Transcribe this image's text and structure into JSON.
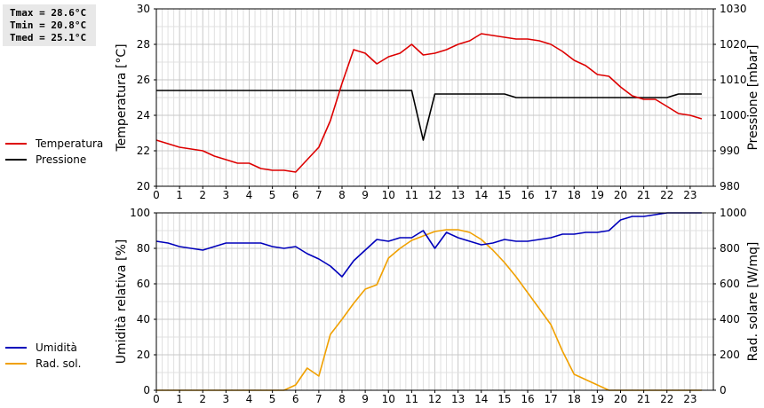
{
  "stats": {
    "tmax": "Tmax = 28.6°C",
    "tmin": "Tmin = 20.8°C",
    "tmed": "Tmed = 25.1°C"
  },
  "legend_top": [
    {
      "label": "Temperatura",
      "color": "#dd0000"
    },
    {
      "label": "Pressione",
      "color": "#000000"
    }
  ],
  "legend_bottom": [
    {
      "label": "Umidità",
      "color": "#0000bb"
    },
    {
      "label": "Rad. sol.",
      "color": "#f0a000"
    }
  ],
  "chart_data": [
    {
      "type": "line",
      "xlim": [
        0,
        24
      ],
      "xticks": [
        "0",
        "1",
        "2",
        "3",
        "4",
        "5",
        "6",
        "7",
        "8",
        "9",
        "10",
        "11",
        "12",
        "13",
        "14",
        "15",
        "16",
        "17",
        "18",
        "19",
        "20",
        "21",
        "22",
        "23"
      ],
      "ylabel_left": "Temperatura [°C]",
      "ylim_left": [
        20,
        30
      ],
      "yticks_left": [
        "20",
        "22",
        "24",
        "26",
        "28",
        "30"
      ],
      "ylabel_right": "Pressione [mbar]",
      "ylim_right": [
        980,
        1030
      ],
      "yticks_right": [
        "980",
        "990",
        "1000",
        "1010",
        "1020",
        "1030"
      ],
      "grid": true,
      "series": [
        {
          "name": "Temperatura",
          "axis": "left",
          "color": "#dd0000",
          "x": [
            0,
            1,
            2,
            2.5,
            3,
            3.5,
            4,
            4.5,
            5,
            5.5,
            6,
            6.5,
            7,
            7.5,
            8,
            8.5,
            9,
            9.5,
            10,
            10.5,
            11,
            11.5,
            12,
            12.5,
            13,
            13.5,
            14,
            14.5,
            15,
            15.5,
            16,
            16.5,
            17,
            17.5,
            18,
            18.5,
            19,
            19.5,
            20,
            20.5,
            21,
            21.5,
            22,
            22.5,
            23,
            23.5
          ],
          "y": [
            22.6,
            22.2,
            22.0,
            21.7,
            21.5,
            21.3,
            21.3,
            21.0,
            20.9,
            20.9,
            20.8,
            21.5,
            22.2,
            23.7,
            25.8,
            27.7,
            27.5,
            26.9,
            27.3,
            27.5,
            28.0,
            27.4,
            27.5,
            27.7,
            28.0,
            28.2,
            28.6,
            28.5,
            28.4,
            28.3,
            28.3,
            28.2,
            28.0,
            27.6,
            27.1,
            26.8,
            26.3,
            26.2,
            25.6,
            25.1,
            24.9,
            24.9,
            24.5,
            24.1,
            24.0,
            23.8
          ]
        },
        {
          "name": "Pressione",
          "axis": "right",
          "color": "#000000",
          "x": [
            0,
            11,
            11.5,
            12,
            15,
            15.5,
            21,
            22,
            22.5,
            23.5
          ],
          "y": [
            1007,
            1007,
            993,
            1006,
            1006,
            1005,
            1005,
            1005,
            1006,
            1006
          ]
        }
      ]
    },
    {
      "type": "line",
      "xlim": [
        0,
        24
      ],
      "xticks": [
        "0",
        "1",
        "2",
        "3",
        "4",
        "5",
        "6",
        "7",
        "8",
        "9",
        "10",
        "11",
        "12",
        "13",
        "14",
        "15",
        "16",
        "17",
        "18",
        "19",
        "20",
        "21",
        "22",
        "23"
      ],
      "ylabel_left": "Umidità relativa [%]",
      "ylim_left": [
        0,
        100
      ],
      "yticks_left": [
        "0",
        "20",
        "40",
        "60",
        "80",
        "100"
      ],
      "ylabel_right": "Rad. solare [W/mq]",
      "ylim_right": [
        0,
        1000
      ],
      "yticks_right": [
        "0",
        "200",
        "400",
        "600",
        "800",
        "1000"
      ],
      "grid": true,
      "series": [
        {
          "name": "Umidità",
          "axis": "left",
          "color": "#0000bb",
          "x": [
            0,
            0.5,
            1,
            1.5,
            2,
            2.5,
            3,
            3.5,
            4,
            4.5,
            5,
            5.5,
            6,
            6.5,
            7,
            7.5,
            8,
            8.5,
            9,
            9.5,
            10,
            10.5,
            11,
            11.5,
            12,
            12.5,
            13,
            13.5,
            14,
            14.5,
            15,
            15.5,
            16,
            16.5,
            17,
            17.5,
            18,
            18.5,
            19,
            19.5,
            20,
            20.5,
            21,
            21.5,
            22,
            22.5,
            23,
            23.5
          ],
          "y": [
            84,
            83,
            81,
            80,
            79,
            81,
            83,
            83,
            83,
            83,
            81,
            80,
            81,
            77,
            74,
            70,
            64,
            73,
            79,
            85,
            84,
            86,
            86,
            90,
            80,
            89,
            86,
            84,
            82,
            83,
            85,
            84,
            84,
            85,
            86,
            88,
            88,
            89,
            89,
            90,
            96,
            98,
            98,
            99,
            100,
            100,
            100,
            100
          ]
        },
        {
          "name": "Rad. sol.",
          "axis": "right",
          "color": "#f0a000",
          "x": [
            0,
            5.5,
            6,
            6.5,
            7,
            7.5,
            8,
            8.5,
            9,
            9.5,
            10,
            10.5,
            11,
            11.5,
            12,
            12.5,
            13,
            13.5,
            14,
            14.5,
            15,
            15.5,
            16,
            16.5,
            17,
            17.5,
            18,
            18.5,
            19,
            19.5,
            20,
            23.5
          ],
          "y": [
            0,
            0,
            30,
            125,
            80,
            315,
            400,
            490,
            570,
            595,
            745,
            800,
            845,
            870,
            895,
            905,
            905,
            890,
            850,
            790,
            720,
            640,
            550,
            460,
            370,
            220,
            90,
            60,
            30,
            0,
            0,
            0
          ]
        }
      ]
    }
  ]
}
